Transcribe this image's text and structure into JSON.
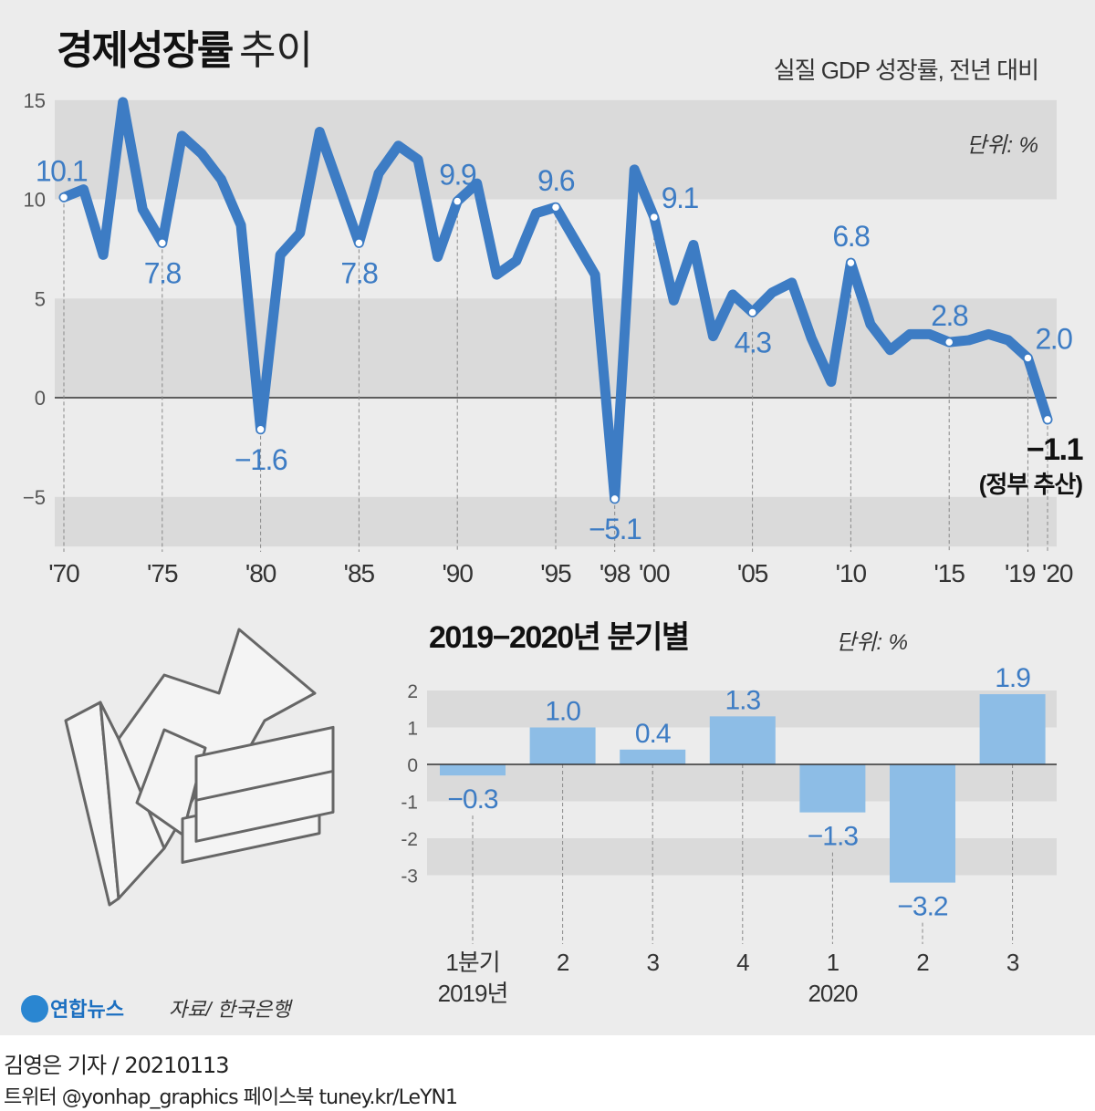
{
  "title_bold": "경제성장률",
  "title_light": "추이",
  "colors": {
    "line": "#3d7cc4",
    "bar": "#8dbde6",
    "band": "#dadada",
    "background": "#ececec"
  },
  "chart_data": [
    {
      "type": "line",
      "subtitle": "실질 GDP 성장률, 전년 대비",
      "unit": "단위: %",
      "x": [
        1970,
        1971,
        1972,
        1973,
        1974,
        1975,
        1976,
        1977,
        1978,
        1979,
        1980,
        1981,
        1982,
        1983,
        1984,
        1985,
        1986,
        1987,
        1988,
        1989,
        1990,
        1991,
        1992,
        1993,
        1994,
        1995,
        1996,
        1997,
        1998,
        1999,
        2000,
        2001,
        2002,
        2003,
        2004,
        2005,
        2006,
        2007,
        2008,
        2009,
        2010,
        2011,
        2012,
        2013,
        2014,
        2015,
        2016,
        2017,
        2018,
        2019,
        2020
      ],
      "values": [
        10.1,
        10.5,
        7.2,
        14.9,
        9.5,
        7.8,
        13.2,
        12.3,
        11.0,
        8.7,
        -1.6,
        7.2,
        8.3,
        13.4,
        10.6,
        7.8,
        11.3,
        12.7,
        12.0,
        7.1,
        9.9,
        10.8,
        6.2,
        6.9,
        9.3,
        9.6,
        7.9,
        6.2,
        -5.1,
        11.5,
        9.1,
        4.9,
        7.7,
        3.1,
        5.2,
        4.3,
        5.3,
        5.8,
        3.0,
        0.8,
        6.8,
        3.7,
        2.4,
        3.2,
        3.2,
        2.8,
        2.9,
        3.2,
        2.9,
        2.0,
        -1.1
      ],
      "ylim": [
        -7.5,
        15
      ],
      "yticks": [
        "15",
        "10",
        "5",
        "0",
        "−5"
      ],
      "ytick_values": [
        15,
        10,
        5,
        0,
        -5
      ],
      "xticks": [
        {
          "year": 1970,
          "label": "'70"
        },
        {
          "year": 1975,
          "label": "'75"
        },
        {
          "year": 1980,
          "label": "'80"
        },
        {
          "year": 1985,
          "label": "'85"
        },
        {
          "year": 1990,
          "label": "'90"
        },
        {
          "year": 1995,
          "label": "'95"
        },
        {
          "year": 1998,
          "label": "'98"
        },
        {
          "year": 2000,
          "label": "'00"
        },
        {
          "year": 2005,
          "label": "'05"
        },
        {
          "year": 2010,
          "label": "'10"
        },
        {
          "year": 2015,
          "label": "'15"
        },
        {
          "year": 2019,
          "label": "'19"
        },
        {
          "year": 2020,
          "label": "'20"
        }
      ],
      "data_labels": [
        {
          "year": 1970,
          "text": "10.1",
          "place": "above"
        },
        {
          "year": 1975,
          "text": "7.8",
          "place": "below"
        },
        {
          "year": 1980,
          "text": "−1.6",
          "place": "below"
        },
        {
          "year": 1985,
          "text": "7.8",
          "place": "below"
        },
        {
          "year": 1990,
          "text": "9.9",
          "place": "above"
        },
        {
          "year": 1995,
          "text": "9.6",
          "place": "above"
        },
        {
          "year": 1998,
          "text": "−5.1",
          "place": "below"
        },
        {
          "year": 2000,
          "text": "9.1",
          "place": "right"
        },
        {
          "year": 2005,
          "text": "4.3",
          "place": "below"
        },
        {
          "year": 2010,
          "text": "6.8",
          "place": "above"
        },
        {
          "year": 2015,
          "text": "2.8",
          "place": "above"
        },
        {
          "year": 2019,
          "text": "2.0",
          "place": "right"
        },
        {
          "year": 2020,
          "text": "−1.1",
          "place": "below",
          "highlight": true,
          "note": "(정부 추산)"
        }
      ],
      "grid": "alternating bands"
    },
    {
      "type": "bar",
      "title": "2019−2020년 분기별",
      "unit": "단위: %",
      "categories": [
        "1분기",
        "2",
        "3",
        "4",
        "1",
        "2",
        "3"
      ],
      "groups": [
        {
          "label": "2019년",
          "index": 0
        },
        {
          "label": "2020",
          "index": 4
        }
      ],
      "values": [
        -0.3,
        1.0,
        0.4,
        1.3,
        -1.3,
        -3.2,
        1.9
      ],
      "value_labels": [
        "−0.3",
        "1.0",
        "0.4",
        "1.3",
        "−1.3",
        "−3.2",
        "1.9"
      ],
      "ylim": [
        -3,
        2
      ],
      "yticks": [
        "2",
        "1",
        "0",
        "-1",
        "-2",
        "-3"
      ],
      "ytick_values": [
        2,
        1,
        0,
        -1,
        -2,
        -3
      ],
      "grid": "alternating bands"
    }
  ],
  "source": "자료/ 한국은행",
  "logo_text": "연합뉴스",
  "footer": {
    "byline": "김영은 기자 / 20210113",
    "social": "트위터 @yonhap_graphics  페이스북 tuney.kr/LeYN1"
  }
}
